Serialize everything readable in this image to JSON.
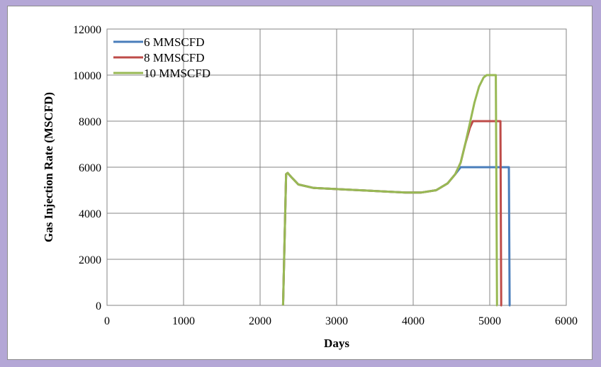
{
  "chart_data": {
    "type": "line",
    "title": "",
    "xlabel": "Days",
    "ylabel": "Gas Injection Rate (MSCFD)",
    "xlim": [
      0,
      6000
    ],
    "ylim": [
      0,
      12000
    ],
    "x_ticks": [
      "0",
      "1000",
      "2000",
      "3000",
      "4000",
      "5000",
      "6000"
    ],
    "y_ticks": [
      "0",
      "2000",
      "4000",
      "6000",
      "8000",
      "10000",
      "12000"
    ],
    "grid": true,
    "legend_position": "top-left",
    "series": [
      {
        "name": "6 MMSCFD",
        "color": "#4a7ebb",
        "x": [
          2300,
          2340,
          2360,
          2400,
          2500,
          2700,
          3000,
          3300,
          3600,
          3900,
          4100,
          4300,
          4450,
          4550,
          4620,
          5000,
          5250,
          5260,
          5270
        ],
        "y": [
          0,
          5700,
          5750,
          5600,
          5250,
          5100,
          5050,
          5000,
          4950,
          4900,
          4900,
          5000,
          5300,
          5700,
          6000,
          6000,
          6000,
          0,
          0
        ]
      },
      {
        "name": "8 MMSCFD",
        "color": "#be4b48",
        "x": [
          2300,
          2340,
          2360,
          2400,
          2500,
          2700,
          3000,
          3300,
          3600,
          3900,
          4100,
          4300,
          4450,
          4550,
          4620,
          4680,
          4740,
          4780,
          5000,
          5140,
          5150,
          5160
        ],
        "y": [
          0,
          5700,
          5750,
          5600,
          5250,
          5100,
          5050,
          5000,
          4950,
          4900,
          4900,
          5000,
          5300,
          5700,
          6200,
          7000,
          7700,
          8000,
          8000,
          8000,
          0,
          0
        ]
      },
      {
        "name": "10 MMSCFD",
        "color": "#98b954",
        "x": [
          2300,
          2340,
          2360,
          2400,
          2500,
          2700,
          3000,
          3300,
          3600,
          3900,
          4100,
          4300,
          4450,
          4550,
          4620,
          4680,
          4740,
          4800,
          4860,
          4920,
          4960,
          5000,
          5080,
          5095,
          5100
        ],
        "y": [
          0,
          5700,
          5750,
          5600,
          5250,
          5100,
          5050,
          5000,
          4950,
          4900,
          4900,
          5000,
          5300,
          5700,
          6200,
          7000,
          7900,
          8800,
          9500,
          9900,
          10000,
          10000,
          10000,
          0,
          0
        ]
      }
    ]
  }
}
